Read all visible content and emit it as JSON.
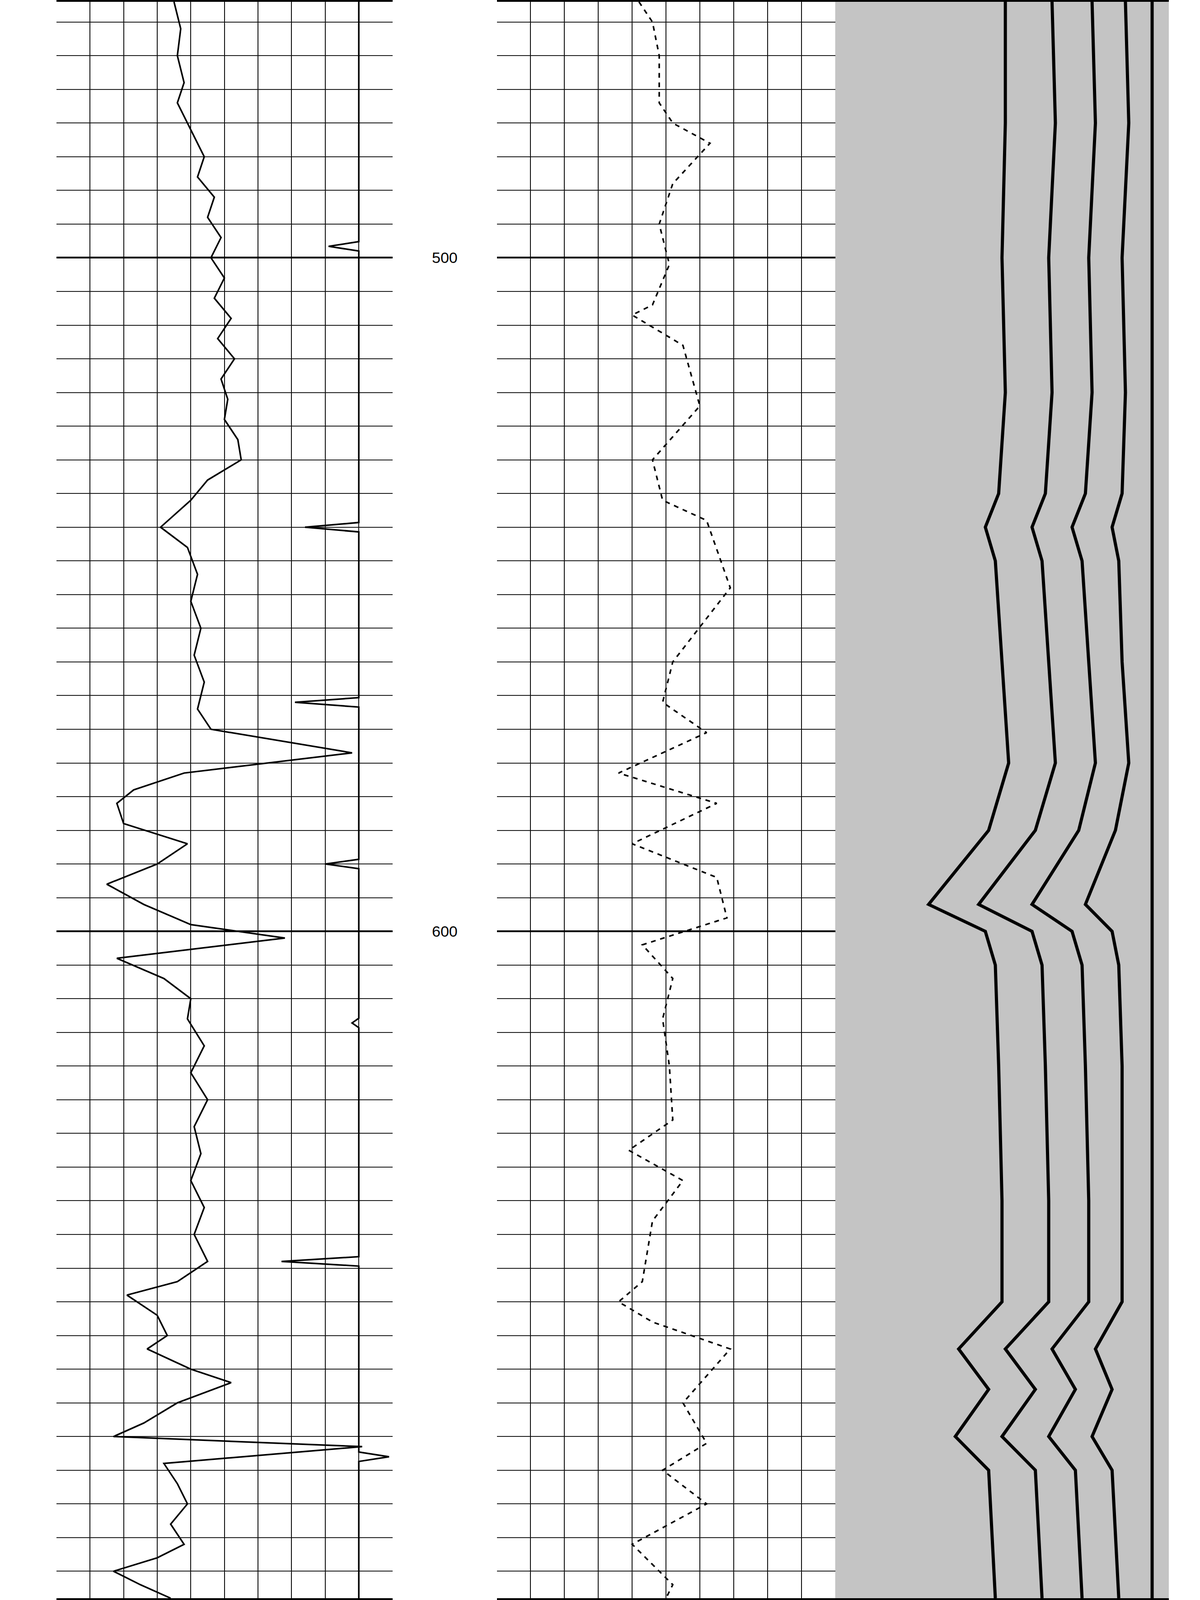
{
  "chart_data": {
    "type": "line",
    "ylim": [
      699,
      462
    ],
    "yticks": [
      500,
      600
    ],
    "grid": true,
    "tick_labels": "y",
    "tracks": [
      {
        "xlim": [
          0,
          10
        ],
        "xticks": [
          0,
          1,
          2,
          3,
          4,
          5,
          6,
          7,
          8,
          9,
          10
        ],
        "grid": true,
        "series": [
          {
            "color": "#000000",
            "line_style": "solid",
            "depth": [
              462,
              466,
              470,
              474,
              477,
              481,
              485,
              488,
              491,
              494,
              497,
              500,
              503,
              506,
              509,
              512,
              515,
              518,
              521,
              524,
              527,
              530,
              533,
              536,
              540,
              543,
              547,
              551,
              555,
              559,
              563,
              567,
              570,
              573.5,
              576.5,
              579,
              581,
              584,
              587,
              590,
              593,
              596,
              599,
              601,
              604,
              607,
              610,
              613,
              617,
              621,
              625,
              629,
              633,
              637,
              641,
              645,
              649,
              652,
              654,
              657,
              660,
              662,
              665,
              667,
              670,
              673,
              675,
              676.5,
              679,
              682,
              685,
              688,
              691,
              693,
              695,
              697,
              699
            ],
            "values": [
              3.5,
              3.7,
              3.6,
              3.8,
              3.6,
              4.0,
              4.4,
              4.2,
              4.7,
              4.5,
              4.9,
              4.6,
              5.0,
              4.7,
              5.2,
              4.8,
              5.3,
              4.9,
              5.1,
              5.0,
              5.4,
              5.5,
              4.5,
              4.0,
              3.1,
              3.9,
              4.2,
              4.0,
              4.3,
              4.1,
              4.4,
              4.2,
              4.6,
              8.8,
              3.8,
              2.3,
              1.8,
              2.0,
              3.9,
              3.0,
              1.5,
              2.6,
              4.0,
              6.8,
              1.8,
              3.2,
              4.0,
              3.9,
              4.4,
              4.0,
              4.5,
              4.1,
              4.3,
              4.0,
              4.4,
              4.1,
              4.5,
              3.6,
              2.1,
              3.0,
              3.3,
              2.7,
              4.0,
              5.2,
              3.6,
              2.6,
              1.7,
              9.1,
              3.2,
              3.6,
              3.9,
              3.4,
              3.8,
              3.0,
              1.7,
              2.5,
              3.4
            ]
          },
          {
            "color": "#000000",
            "line_style": "solid",
            "depth": [
              462,
              497.6,
              498.3,
              499,
              539.3,
              540,
              540.7,
              565.3,
              566,
              566.7,
              589.3,
              590,
              590.7,
              612.9,
              613.6,
              614.3,
              648.3,
              649,
              649.7,
              677.3,
              678,
              678.7,
              699
            ],
            "values": [
              9.0,
              9.0,
              8.1,
              9.0,
              9.0,
              7.4,
              9.0,
              9.0,
              7.1,
              9.0,
              9.0,
              8.0,
              9.0,
              9.0,
              8.8,
              9.0,
              9.0,
              6.7,
              9.0,
              9.0,
              9.9,
              9.0,
              9.0
            ]
          }
        ]
      },
      {
        "xlim": [
          0,
          10
        ],
        "xticks": [
          0,
          1,
          2,
          3,
          4,
          5,
          6,
          7,
          8,
          9,
          10
        ],
        "grid": true,
        "series": [
          {
            "color": "#000000",
            "line_style": "dash",
            "depth": [
              462,
              465,
              470,
              477,
              480,
              483,
              489,
              495,
              501,
              507,
              508.5,
              513,
              522,
              530,
              536,
              539,
              549,
              560,
              566,
              570.5,
              576.5,
              581,
              587,
              592,
              598,
              602,
              607,
              613,
              620,
              628,
              632.5,
              637,
              643,
              652,
              655,
              658,
              662,
              670,
              676,
              680,
              685,
              691,
              697,
              699
            ],
            "values": [
              4.2,
              4.6,
              4.8,
              4.8,
              5.2,
              6.3,
              5.2,
              4.8,
              5.1,
              4.6,
              4.0,
              5.5,
              6.0,
              4.6,
              4.9,
              6.2,
              6.9,
              5.2,
              4.9,
              6.2,
              3.6,
              6.5,
              4.0,
              6.5,
              6.8,
              4.3,
              5.2,
              4.9,
              5.1,
              5.2,
              3.9,
              5.5,
              4.6,
              4.3,
              3.6,
              4.6,
              6.9,
              5.5,
              6.2,
              4.9,
              6.2,
              4.0,
              5.2,
              5.0
            ]
          }
        ]
      },
      {
        "xlim": [
          0,
          10
        ],
        "xticks": [
          0,
          10
        ],
        "grid": false,
        "series": [
          {
            "color": "#000000",
            "line_style": "solid",
            "depth": [
              462,
              480,
              500,
              520,
              535,
              540,
              545,
              560,
              575,
              585,
              596,
              600,
              605,
              620,
              640,
              655,
              662,
              668,
              675,
              680,
              699
            ],
            "values": [
              5.1,
              5.1,
              5.0,
              5.1,
              4.9,
              4.5,
              4.8,
              5.0,
              5.2,
              4.6,
              2.8,
              4.5,
              4.8,
              4.9,
              5.0,
              5.0,
              3.7,
              4.6,
              3.6,
              4.6,
              4.8
            ]
          },
          {
            "color": "#000000",
            "line_style": "solid",
            "depth": [
              462,
              480,
              500,
              520,
              535,
              540,
              545,
              560,
              575,
              585,
              596,
              600,
              605,
              620,
              640,
              655,
              662,
              668,
              675,
              680,
              699
            ],
            "values": [
              6.5,
              6.6,
              6.4,
              6.5,
              6.3,
              5.9,
              6.2,
              6.4,
              6.6,
              6.0,
              4.3,
              5.9,
              6.2,
              6.3,
              6.4,
              6.4,
              5.1,
              6.0,
              5.0,
              6.0,
              6.2
            ]
          },
          {
            "color": "#000000",
            "line_style": "solid",
            "depth": [
              462,
              480,
              500,
              520,
              535,
              540,
              545,
              560,
              575,
              585,
              596,
              600,
              605,
              620,
              640,
              655,
              662,
              668,
              675,
              680,
              699
            ],
            "values": [
              7.7,
              7.8,
              7.6,
              7.7,
              7.5,
              7.1,
              7.4,
              7.6,
              7.8,
              7.3,
              5.9,
              7.1,
              7.4,
              7.5,
              7.6,
              7.6,
              6.5,
              7.2,
              6.4,
              7.2,
              7.4
            ]
          },
          {
            "color": "#000000",
            "line_style": "solid",
            "depth": [
              462,
              480,
              500,
              520,
              535,
              540,
              545,
              560,
              575,
              585,
              596,
              600,
              605,
              620,
              640,
              655,
              662,
              668,
              675,
              680,
              699
            ],
            "values": [
              8.7,
              8.8,
              8.6,
              8.7,
              8.6,
              8.3,
              8.5,
              8.6,
              8.8,
              8.4,
              7.5,
              8.3,
              8.5,
              8.6,
              8.6,
              8.6,
              7.8,
              8.3,
              7.7,
              8.3,
              8.5
            ]
          },
          {
            "color": "#000000",
            "line_style": "solid",
            "depth": [
              462,
              699
            ],
            "values": [
              9.5,
              9.5
            ]
          }
        ]
      }
    ]
  }
}
